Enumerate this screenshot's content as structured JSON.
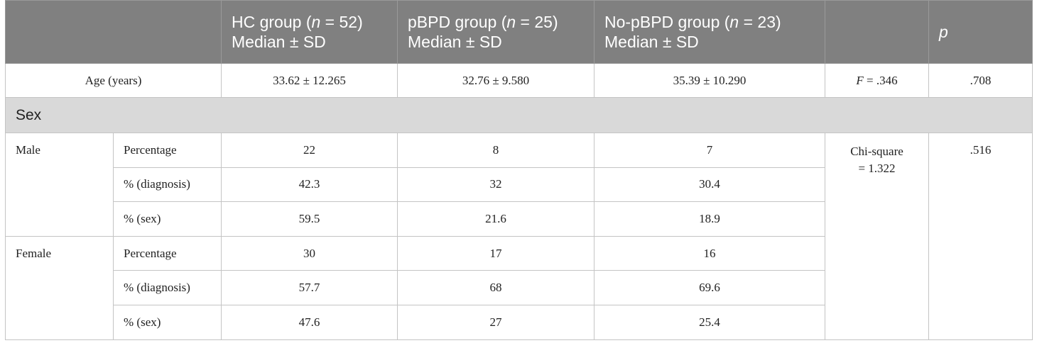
{
  "header": {
    "groups": [
      {
        "label_start": "HC group (",
        "n": "n",
        "label_end": " = 52)",
        "stat": "Median ± SD"
      },
      {
        "label_start": "pBPD group (",
        "n": "n",
        "label_end": " = 25)",
        "stat": "Median ± SD"
      },
      {
        "label_start": "No-pBPD group (",
        "n": "n",
        "label_end": " = 23)",
        "stat": "Median ± SD"
      }
    ],
    "p_label": "p"
  },
  "age_row": {
    "label": "Age (years)",
    "values": [
      "33.62 ± 12.265",
      "32.76 ± 9.580",
      "35.39 ± 10.290"
    ],
    "test": {
      "symbol": "F",
      "text": " = .346"
    },
    "p": ".708"
  },
  "sex_section": {
    "label": "Sex",
    "test_lines": [
      "Chi-square",
      "= 1.322"
    ],
    "p": ".516",
    "groups": [
      {
        "label": "Male",
        "rows": [
          {
            "measure": "Percentage",
            "values": [
              "22",
              "8",
              "7"
            ]
          },
          {
            "measure": "% (diagnosis)",
            "values": [
              "42.3",
              "32",
              "30.4"
            ]
          },
          {
            "measure": "% (sex)",
            "values": [
              "59.5",
              "21.6",
              "18.9"
            ]
          }
        ]
      },
      {
        "label": "Female",
        "rows": [
          {
            "measure": "Percentage",
            "values": [
              "30",
              "17",
              "16"
            ]
          },
          {
            "measure": "% (diagnosis)",
            "values": [
              "57.7",
              "68",
              "69.6"
            ]
          },
          {
            "measure": "% (sex)",
            "values": [
              "47.6",
              "27",
              "25.4"
            ]
          }
        ]
      }
    ]
  }
}
